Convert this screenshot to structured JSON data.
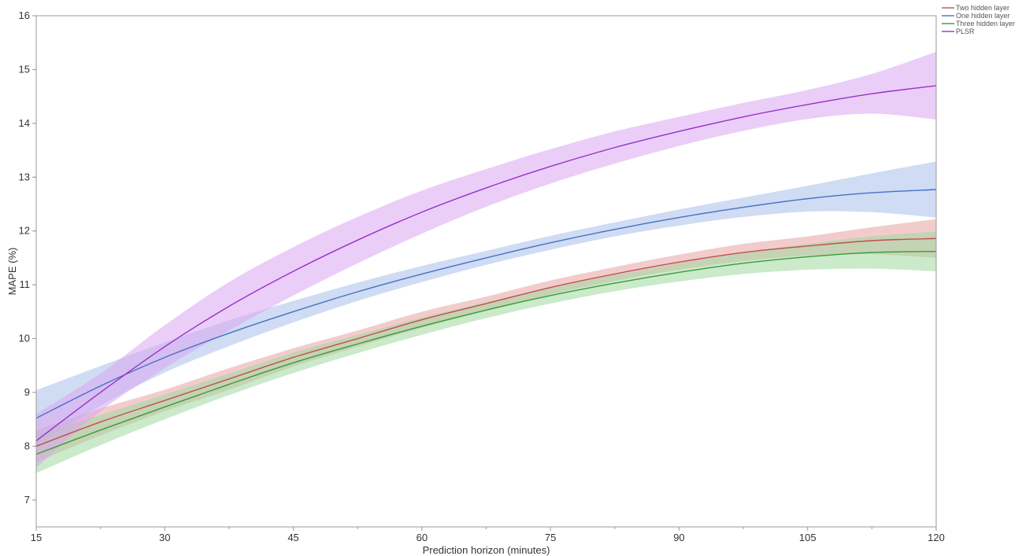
{
  "chart_data": {
    "type": "line",
    "xlabel": "Prediction horizon (minutes)",
    "ylabel": "MAPE (%)",
    "xlim": [
      15,
      120
    ],
    "ylim": [
      6.5,
      16
    ],
    "xticks": [
      15,
      30,
      45,
      60,
      75,
      90,
      105,
      120
    ],
    "yticks": [
      7,
      8,
      9,
      10,
      11,
      12,
      13,
      14,
      15,
      16
    ],
    "grid": false,
    "legend_position": "top-right",
    "x": [
      15,
      22.5,
      30,
      37.5,
      45,
      52.5,
      60,
      67.5,
      75,
      82.5,
      90,
      97.5,
      105,
      112.5,
      120
    ],
    "series": [
      {
        "name": "Two hidden layer",
        "color": "#c0504d",
        "band_color": "#e8a3a3",
        "values": [
          8.0,
          8.45,
          8.85,
          9.25,
          9.65,
          10.0,
          10.35,
          10.65,
          10.95,
          11.2,
          11.42,
          11.6,
          11.72,
          11.82,
          11.86
        ],
        "lower": [
          7.7,
          8.2,
          8.65,
          9.05,
          9.48,
          9.85,
          10.2,
          10.52,
          10.82,
          11.07,
          11.28,
          11.44,
          11.54,
          11.57,
          11.5
        ],
        "upper": [
          8.3,
          8.7,
          9.05,
          9.45,
          9.82,
          10.15,
          10.5,
          10.78,
          11.08,
          11.33,
          11.56,
          11.76,
          11.9,
          12.07,
          12.22
        ]
      },
      {
        "name": "One hidden layer",
        "color": "#4472c4",
        "band_color": "#a9bdeb",
        "values": [
          8.52,
          9.12,
          9.65,
          10.1,
          10.5,
          10.87,
          11.2,
          11.5,
          11.78,
          12.03,
          12.25,
          12.44,
          12.6,
          12.71,
          12.77
        ],
        "lower": [
          8.0,
          8.75,
          9.37,
          9.86,
          10.3,
          10.7,
          11.05,
          11.37,
          11.65,
          11.9,
          12.1,
          12.26,
          12.36,
          12.35,
          12.25
        ],
        "upper": [
          9.04,
          9.49,
          9.93,
          10.34,
          10.7,
          11.04,
          11.35,
          11.63,
          11.91,
          12.16,
          12.4,
          12.62,
          12.84,
          13.07,
          13.29
        ]
      },
      {
        "name": "Three hidden layer",
        "color": "#3a9a3a",
        "band_color": "#9fd99f",
        "values": [
          7.85,
          8.3,
          8.73,
          9.15,
          9.55,
          9.9,
          10.23,
          10.53,
          10.8,
          11.03,
          11.23,
          11.4,
          11.52,
          11.6,
          11.62
        ],
        "lower": [
          7.5,
          8.02,
          8.5,
          8.95,
          9.36,
          9.73,
          10.07,
          10.38,
          10.65,
          10.88,
          11.06,
          11.2,
          11.28,
          11.3,
          11.25
        ],
        "upper": [
          8.2,
          8.58,
          8.96,
          9.35,
          9.74,
          10.07,
          10.39,
          10.68,
          10.95,
          11.18,
          11.4,
          11.6,
          11.76,
          11.9,
          11.99
        ]
      },
      {
        "name": "PLSR",
        "color": "#9b30c8",
        "band_color": "#d8a6f0",
        "values": [
          8.1,
          9.0,
          9.85,
          10.6,
          11.25,
          11.83,
          12.35,
          12.8,
          13.2,
          13.55,
          13.85,
          14.12,
          14.35,
          14.55,
          14.7
        ],
        "lower": [
          7.6,
          8.65,
          9.45,
          10.15,
          10.8,
          11.4,
          11.95,
          12.45,
          12.88,
          13.25,
          13.58,
          13.86,
          14.08,
          14.18,
          14.07
        ],
        "upper": [
          8.6,
          9.35,
          10.25,
          11.05,
          11.7,
          12.26,
          12.75,
          13.15,
          13.52,
          13.85,
          14.12,
          14.38,
          14.62,
          14.92,
          15.33
        ]
      }
    ]
  }
}
